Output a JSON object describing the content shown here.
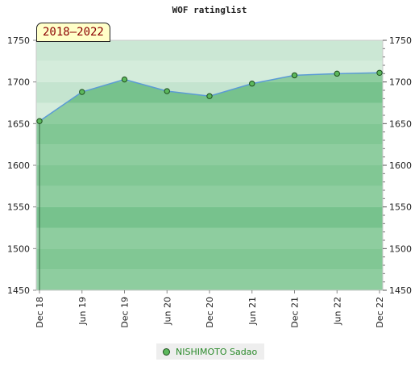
{
  "header": {
    "title": "WOF ratinglist",
    "period_badge": "2018–2022"
  },
  "chart_data": {
    "type": "area",
    "title": "WOF ratinglist",
    "categories": [
      "Dec 18",
      "Jun 19",
      "Dec 19",
      "Jun 20",
      "Dec 20",
      "Jun 21",
      "Dec 21",
      "Jun 22",
      "Dec 22"
    ],
    "series": [
      {
        "name": "NISHIMOTO Sadao",
        "values": [
          1653,
          1688,
          1703,
          1689,
          1683,
          1698,
          1708,
          1710,
          1711
        ]
      }
    ],
    "ylim": [
      1450,
      1750
    ],
    "yticks": [
      1450,
      1500,
      1550,
      1600,
      1650,
      1700,
      1750
    ],
    "y_axis_both_sides": true,
    "legend_position": "bottom",
    "colors": {
      "line": "#5b9bd5",
      "fill": "#8bc89e",
      "marker": "#5cb85c",
      "marker_edge": "#1d4d1d"
    }
  }
}
